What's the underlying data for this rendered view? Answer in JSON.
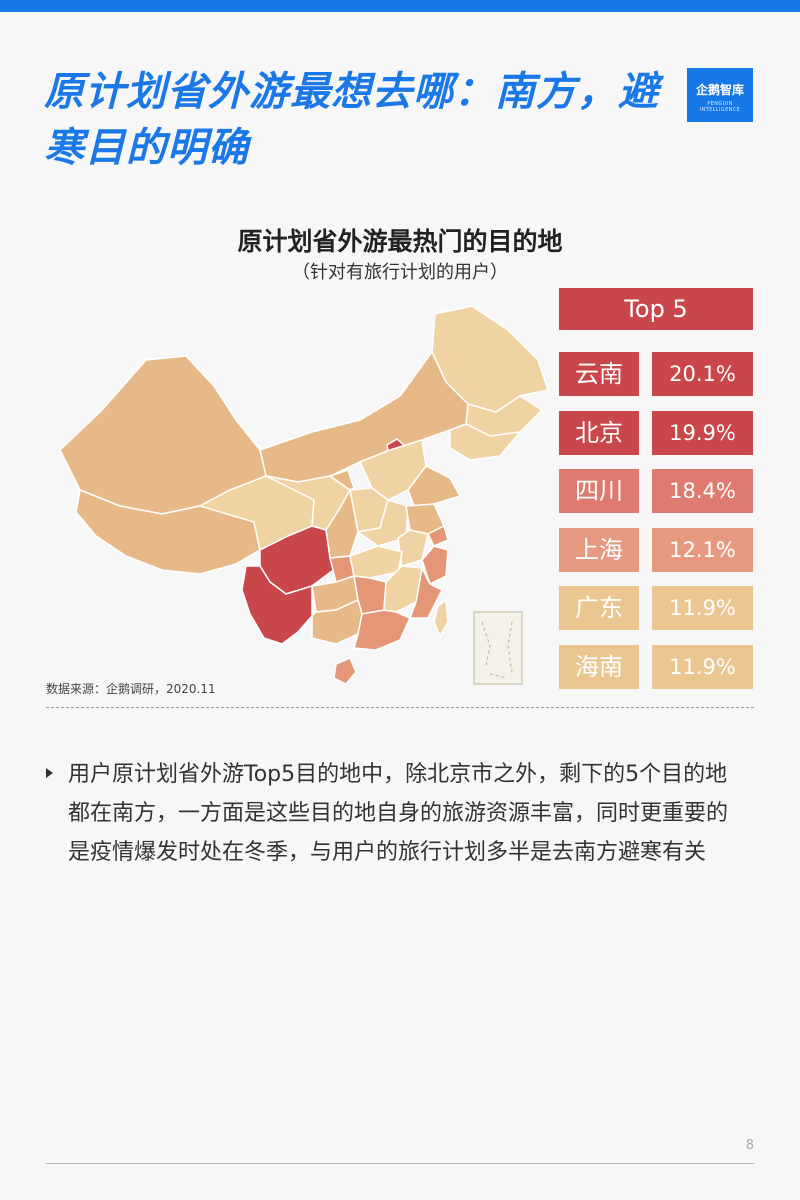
{
  "header": {
    "title": "原计划省外游最想去哪：南方，避寒目的明确",
    "logo_text": "企鹅智库",
    "logo_subtext": "PENGUIN INTELLIGENCE"
  },
  "chart_data": {
    "type": "table",
    "title": "原计划省外游最热门的目的地",
    "subtitle": "（针对有旅行计划的用户）",
    "legend_title": "Top 5",
    "categories": [
      "云南",
      "北京",
      "四川",
      "上海",
      "广东",
      "海南"
    ],
    "values": [
      20.1,
      19.9,
      18.4,
      12.1,
      11.9,
      11.9
    ],
    "value_labels": [
      "20.1%",
      "19.9%",
      "18.4%",
      "12.1%",
      "11.9%",
      "11.9%"
    ],
    "colors": [
      "#c9464b",
      "#c9464b",
      "#de7a6f",
      "#e59a80",
      "#ecc690",
      "#ecc690"
    ],
    "map_color_scale": [
      "#efd3a3",
      "#e8b988",
      "#e49676",
      "#c9464b"
    ]
  },
  "source": "数据来源：企鹅调研，2020.11",
  "body": {
    "paragraph": "用户原计划省外游Top5目的地中，除北京市之外，剩下的5个目的地都在南方，一方面是这些目的地自身的旅游资源丰富，同时更重要的是疫情爆发时处在冬季，与用户的旅行计划多半是去南方避寒有关"
  },
  "page_number": "8"
}
